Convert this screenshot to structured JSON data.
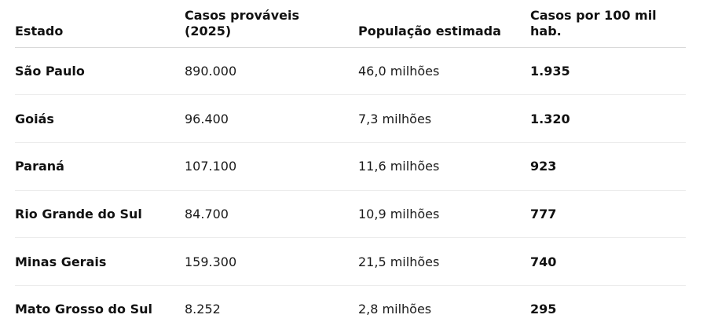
{
  "table": {
    "headers": {
      "estado": "Estado",
      "casos_line1": "Casos prováveis",
      "casos_line2": "(2025)",
      "populacao": "População estimada",
      "taxa": "Casos por 100 mil hab."
    },
    "rows": [
      {
        "estado": "São Paulo",
        "casos": "890.000",
        "populacao": "46,0 milhões",
        "taxa": "1.935"
      },
      {
        "estado": "Goiás",
        "casos": "96.400",
        "populacao": "7,3 milhões",
        "taxa": "1.320"
      },
      {
        "estado": "Paraná",
        "casos": "107.100",
        "populacao": "11,6 milhões",
        "taxa": "923"
      },
      {
        "estado": "Rio Grande do Sul",
        "casos": "84.700",
        "populacao": "10,9 milhões",
        "taxa": "777"
      },
      {
        "estado": "Minas Gerais",
        "casos": "159.300",
        "populacao": "21,5 milhões",
        "taxa": "740"
      },
      {
        "estado": "Mato Grosso do Sul",
        "casos": "8.252",
        "populacao": "2,8 milhões",
        "taxa": "295"
      }
    ]
  }
}
